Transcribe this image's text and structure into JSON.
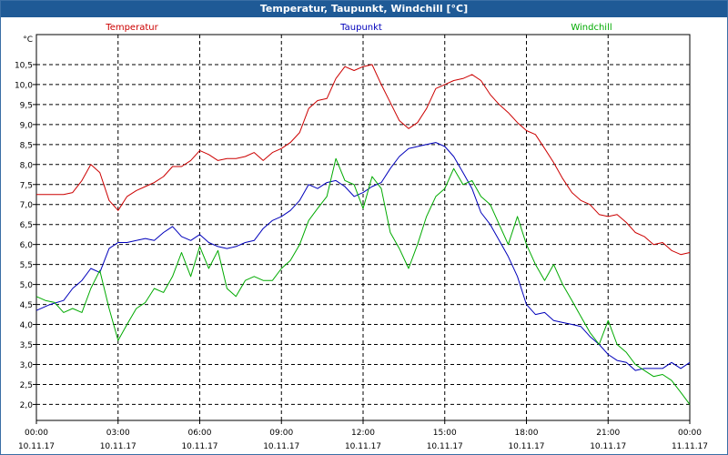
{
  "window": {
    "title": "Temperatur, Taupunkt, Windchill [°C]"
  },
  "chart_data": {
    "type": "line",
    "title": "Temperatur, Taupunkt, Windchill [°C]",
    "ylabel": "°C",
    "ylim": [
      1.6,
      11.25
    ],
    "xlim": [
      0,
      24
    ],
    "grid": true,
    "legend": "top",
    "yticks": [
      "2,0",
      "2,5",
      "3,0",
      "3,5",
      "4,0",
      "4,5",
      "5,0",
      "5,5",
      "6,0",
      "6,5",
      "7,0",
      "7,5",
      "8,0",
      "8,5",
      "9,0",
      "9,5",
      "10,0",
      "10,5"
    ],
    "ytick_values": [
      2.0,
      2.5,
      3.0,
      3.5,
      4.0,
      4.5,
      5.0,
      5.5,
      6.0,
      6.5,
      7.0,
      7.5,
      8.0,
      8.5,
      9.0,
      9.5,
      10.0,
      10.5
    ],
    "xticks": [
      {
        "time": "00:00",
        "date": "10.11.17"
      },
      {
        "time": "03:00",
        "date": "10.11.17"
      },
      {
        "time": "06:00",
        "date": "10.11.17"
      },
      {
        "time": "09:00",
        "date": "10.11.17"
      },
      {
        "time": "12:00",
        "date": "10.11.17"
      },
      {
        "time": "15:00",
        "date": "10.11.17"
      },
      {
        "time": "18:00",
        "date": "10.11.17"
      },
      {
        "time": "21:00",
        "date": "10.11.17"
      },
      {
        "time": "00:00",
        "date": "11.11.17"
      }
    ],
    "series": [
      {
        "name": "Temperatur",
        "color": "#cc0000",
        "x": [
          0,
          0.5,
          1,
          1.33,
          1.67,
          2.0,
          2.33,
          2.67,
          3.0,
          3.33,
          3.67,
          4.0,
          4.33,
          4.67,
          5.0,
          5.33,
          5.67,
          6.0,
          6.33,
          6.67,
          7.0,
          7.33,
          7.67,
          8.0,
          8.33,
          8.67,
          9.0,
          9.33,
          9.67,
          10.0,
          10.33,
          10.67,
          11.0,
          11.33,
          11.67,
          12.0,
          12.33,
          12.67,
          13.0,
          13.33,
          13.67,
          14.0,
          14.33,
          14.67,
          15.0,
          15.33,
          15.67,
          16.0,
          16.33,
          16.67,
          17.0,
          17.33,
          17.67,
          18.0,
          18.33,
          18.67,
          19.0,
          19.33,
          19.67,
          20.0,
          20.33,
          20.67,
          21.0,
          21.33,
          21.67,
          22.0,
          22.33,
          22.67,
          23.0,
          23.33,
          23.67,
          24.0
        ],
        "values": [
          7.25,
          7.25,
          7.25,
          7.3,
          7.6,
          8.0,
          7.8,
          7.1,
          6.85,
          7.2,
          7.35,
          7.45,
          7.55,
          7.7,
          7.95,
          7.95,
          8.1,
          8.35,
          8.25,
          8.1,
          8.15,
          8.15,
          8.2,
          8.3,
          8.1,
          8.3,
          8.4,
          8.55,
          8.8,
          9.4,
          9.6,
          9.65,
          10.15,
          10.45,
          10.35,
          10.45,
          10.5,
          10.0,
          9.55,
          9.1,
          8.9,
          9.05,
          9.4,
          9.9,
          10.0,
          10.1,
          10.15,
          10.25,
          10.1,
          9.75,
          9.5,
          9.3,
          9.05,
          8.85,
          8.75,
          8.4,
          8.05,
          7.65,
          7.3,
          7.1,
          7.0,
          6.75,
          6.7,
          6.75,
          6.55,
          6.3,
          6.2,
          6.0,
          6.05,
          5.85,
          5.75,
          5.8
        ]
      },
      {
        "name": "Taupunkt",
        "color": "#0000bb",
        "x": [
          0,
          0.5,
          1,
          1.33,
          1.67,
          2.0,
          2.33,
          2.67,
          3.0,
          3.33,
          3.67,
          4.0,
          4.33,
          4.67,
          5.0,
          5.33,
          5.67,
          6.0,
          6.33,
          6.67,
          7.0,
          7.33,
          7.67,
          8.0,
          8.33,
          8.67,
          9.0,
          9.33,
          9.67,
          10.0,
          10.33,
          10.67,
          11.0,
          11.33,
          11.67,
          12.0,
          12.33,
          12.67,
          13.0,
          13.33,
          13.67,
          14.0,
          14.33,
          14.67,
          15.0,
          15.33,
          15.67,
          16.0,
          16.33,
          16.67,
          17.0,
          17.33,
          17.67,
          18.0,
          18.33,
          18.67,
          19.0,
          19.33,
          19.67,
          20.0,
          20.33,
          20.67,
          21.0,
          21.33,
          21.67,
          22.0,
          22.33,
          22.67,
          23.0,
          23.33,
          23.67,
          24.0
        ],
        "values": [
          4.35,
          4.5,
          4.6,
          4.9,
          5.1,
          5.4,
          5.3,
          5.9,
          6.05,
          6.05,
          6.1,
          6.15,
          6.1,
          6.3,
          6.45,
          6.2,
          6.1,
          6.25,
          6.05,
          5.95,
          5.9,
          5.95,
          6.05,
          6.1,
          6.4,
          6.6,
          6.7,
          6.85,
          7.1,
          7.5,
          7.4,
          7.55,
          7.6,
          7.45,
          7.2,
          7.3,
          7.45,
          7.55,
          7.9,
          8.2,
          8.4,
          8.45,
          8.5,
          8.55,
          8.45,
          8.2,
          7.8,
          7.4,
          6.8,
          6.5,
          6.1,
          5.7,
          5.2,
          4.5,
          4.25,
          4.3,
          4.1,
          4.05,
          4.0,
          3.95,
          3.7,
          3.5,
          3.25,
          3.1,
          3.05,
          2.85,
          2.9,
          2.9,
          2.9,
          3.05,
          2.9,
          3.05
        ]
      },
      {
        "name": "Windchill",
        "color": "#00aa00",
        "x": [
          0,
          0.33,
          0.67,
          1.0,
          1.33,
          1.67,
          2.0,
          2.33,
          2.67,
          3.0,
          3.33,
          3.67,
          4.0,
          4.33,
          4.67,
          5.0,
          5.33,
          5.67,
          6.0,
          6.33,
          6.67,
          7.0,
          7.33,
          7.67,
          8.0,
          8.33,
          8.67,
          9.0,
          9.33,
          9.67,
          10.0,
          10.33,
          10.67,
          11.0,
          11.33,
          11.67,
          12.0,
          12.33,
          12.67,
          13.0,
          13.33,
          13.67,
          14.0,
          14.33,
          14.67,
          15.0,
          15.33,
          15.67,
          16.0,
          16.33,
          16.67,
          17.0,
          17.33,
          17.67,
          18.0,
          18.33,
          18.67,
          19.0,
          19.33,
          19.67,
          20.0,
          20.33,
          20.67,
          21.0,
          21.33,
          21.67,
          22.0,
          22.33,
          22.67,
          23.0,
          23.33,
          23.67,
          24.0
        ],
        "values": [
          4.7,
          4.6,
          4.55,
          4.3,
          4.4,
          4.3,
          4.9,
          5.35,
          4.4,
          3.6,
          4.0,
          4.4,
          4.55,
          4.9,
          4.8,
          5.2,
          5.8,
          5.2,
          5.95,
          5.4,
          5.85,
          4.9,
          4.7,
          5.1,
          5.2,
          5.1,
          5.1,
          5.4,
          5.6,
          6.0,
          6.6,
          6.9,
          7.2,
          8.15,
          7.6,
          7.5,
          6.9,
          7.7,
          7.4,
          6.3,
          5.9,
          5.4,
          6.0,
          6.7,
          7.2,
          7.4,
          7.9,
          7.5,
          7.6,
          7.2,
          7.0,
          6.5,
          6.0,
          6.7,
          6.0,
          5.5,
          5.1,
          5.5,
          5.0,
          4.6,
          4.2,
          3.8,
          3.5,
          4.1,
          3.5,
          3.3,
          3.0,
          2.85,
          2.7,
          2.75,
          2.6,
          2.3,
          2.0
        ]
      }
    ]
  }
}
